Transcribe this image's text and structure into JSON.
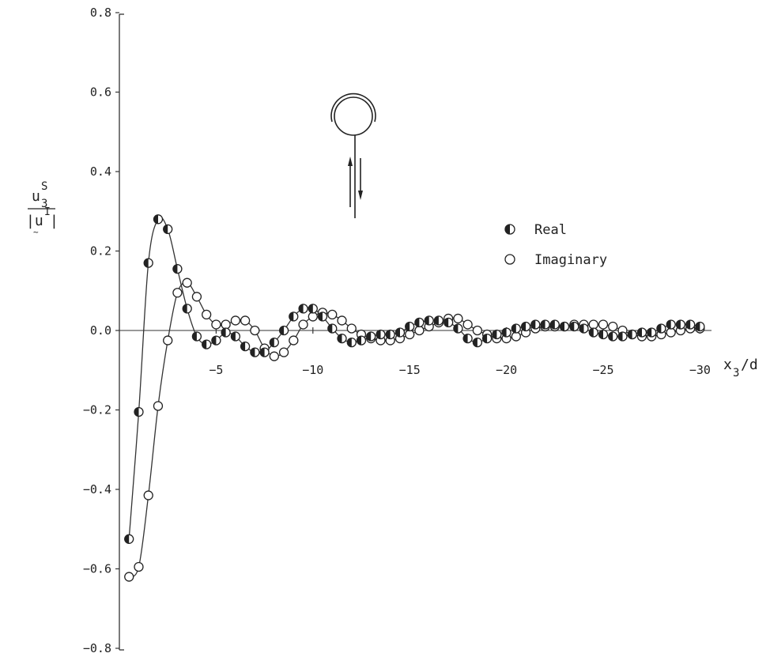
{
  "chart_data": {
    "type": "scatter",
    "xlabel": "x3/d",
    "ylabel": "u3S / |uI|",
    "xlim": [
      0,
      -31.5
    ],
    "ylim": [
      -0.8,
      0.8
    ],
    "y_ticks": [
      "0.8",
      "0.6",
      "0.4",
      "0.2",
      "0.0",
      "-0.2",
      "-0.4",
      "-0.6",
      "-0.8"
    ],
    "y_tick_values": [
      0.8,
      0.6,
      0.4,
      0.2,
      0.0,
      -0.2,
      -0.4,
      -0.6,
      -0.8
    ],
    "x_ticks": [
      "-5",
      "-10",
      "-15",
      "-20",
      "-25",
      "-30"
    ],
    "x_tick_values": [
      -5,
      -10,
      -15,
      -20,
      -25,
      -30
    ],
    "grid": false,
    "legend_position": "right",
    "series": [
      {
        "name": "Real",
        "marker": "half-filled-circle",
        "x": [
          -0.5,
          -1.0,
          -1.5,
          -2.0,
          -2.5,
          -3.0,
          -3.5,
          -4.0,
          -4.5,
          -5.0,
          -5.5,
          -6.0,
          -6.5,
          -7.0,
          -7.5,
          -8.0,
          -8.5,
          -9.0,
          -9.5,
          -10.0,
          -10.5,
          -11.0,
          -11.5,
          -12.0,
          -12.5,
          -13.0,
          -13.5,
          -14.0,
          -14.5,
          -15.0,
          -15.5,
          -16.0,
          -16.5,
          -17.0,
          -17.5,
          -18.0,
          -18.5,
          -19.0,
          -19.5,
          -20.0,
          -20.5,
          -21.0,
          -21.5,
          -22.0,
          -22.5,
          -23.0,
          -23.5,
          -24.0,
          -24.5,
          -25.0,
          -25.5,
          -26.0,
          -26.5,
          -27.0,
          -27.5,
          -28.0,
          -28.5,
          -29.0,
          -29.5,
          -30.0
        ],
        "y": [
          -0.525,
          -0.205,
          0.17,
          0.28,
          0.255,
          0.155,
          0.055,
          -0.015,
          -0.035,
          -0.025,
          -0.005,
          -0.015,
          -0.04,
          -0.055,
          -0.055,
          -0.03,
          0.0,
          0.035,
          0.055,
          0.055,
          0.035,
          0.005,
          -0.02,
          -0.03,
          -0.025,
          -0.015,
          -0.01,
          -0.01,
          -0.005,
          0.01,
          0.02,
          0.025,
          0.025,
          0.02,
          0.005,
          -0.02,
          -0.03,
          -0.02,
          -0.01,
          -0.005,
          0.005,
          0.01,
          0.015,
          0.015,
          0.015,
          0.01,
          0.01,
          0.005,
          -0.005,
          -0.01,
          -0.015,
          -0.015,
          -0.01,
          -0.005,
          -0.005,
          0.005,
          0.015,
          0.015,
          0.015,
          0.01
        ]
      },
      {
        "name": "Imaginary",
        "marker": "open-circle",
        "x": [
          -0.5,
          -1.0,
          -1.5,
          -2.0,
          -2.5,
          -3.0,
          -3.5,
          -4.0,
          -4.5,
          -5.0,
          -5.5,
          -6.0,
          -6.5,
          -7.0,
          -7.5,
          -8.0,
          -8.5,
          -9.0,
          -9.5,
          -10.0,
          -10.5,
          -11.0,
          -11.5,
          -12.0,
          -12.5,
          -13.0,
          -13.5,
          -14.0,
          -14.5,
          -15.0,
          -15.5,
          -16.0,
          -16.5,
          -17.0,
          -17.5,
          -18.0,
          -18.5,
          -19.0,
          -19.5,
          -20.0,
          -20.5,
          -21.0,
          -21.5,
          -22.0,
          -22.5,
          -23.0,
          -23.5,
          -24.0,
          -24.5,
          -25.0,
          -25.5,
          -26.0,
          -26.5,
          -27.0,
          -27.5,
          -28.0,
          -28.5,
          -29.0,
          -29.5,
          -30.0
        ],
        "y": [
          -0.62,
          -0.595,
          -0.415,
          -0.19,
          -0.025,
          0.095,
          0.12,
          0.085,
          0.04,
          0.015,
          0.015,
          0.025,
          0.025,
          0.0,
          -0.045,
          -0.065,
          -0.055,
          -0.025,
          0.015,
          0.035,
          0.045,
          0.04,
          0.025,
          0.005,
          -0.01,
          -0.02,
          -0.025,
          -0.025,
          -0.02,
          -0.01,
          0.0,
          0.01,
          0.02,
          0.03,
          0.03,
          0.015,
          0.0,
          -0.01,
          -0.02,
          -0.02,
          -0.015,
          -0.005,
          0.005,
          0.01,
          0.01,
          0.01,
          0.015,
          0.015,
          0.015,
          0.015,
          0.01,
          0.0,
          -0.01,
          -0.015,
          -0.015,
          -0.01,
          -0.005,
          0.0,
          0.005,
          0.005
        ]
      }
    ]
  }
}
